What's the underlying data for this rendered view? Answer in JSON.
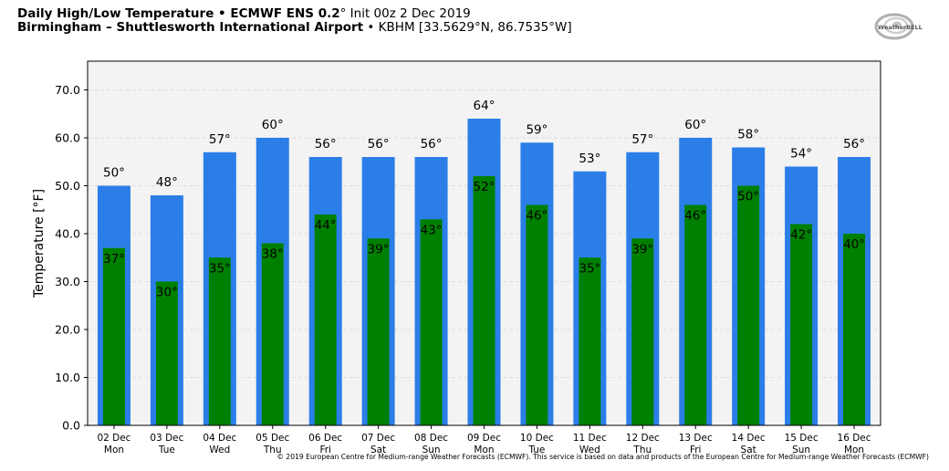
{
  "header": {
    "title_main": "Daily High/Low Temperature • ECMWF ENS 0.2",
    "title_degree": "°",
    "title_init": " Init 00z 2 Dec 2019",
    "location_main": "Birmingham – Shuttlesworth International Airport",
    "location_rest": " • KBHM [33.5629°N, 86.7535°W]"
  },
  "logo": {
    "text": "WeatherBELL",
    "icon": "swirl-logo-icon"
  },
  "copyright": "© 2019 European Centre for Medium-range Weather Forecasts (ECMWF). This service is based on data and products of the European Centre for Medium-range Weather Forecasts (ECMWF)",
  "colors": {
    "high": "#2b7ee8",
    "low": "#008000",
    "plot_bg": "#f3f3f3",
    "grid": "#d8d8d8"
  },
  "chart_data": {
    "type": "bar",
    "ylabel": "Temperature [°F]",
    "ylim": [
      0,
      76
    ],
    "yticks": [
      "0.0",
      "10.0",
      "20.0",
      "30.0",
      "40.0",
      "50.0",
      "60.0",
      "70.0"
    ],
    "categories": [
      [
        "02 Dec",
        "Mon"
      ],
      [
        "03 Dec",
        "Tue"
      ],
      [
        "04 Dec",
        "Wed"
      ],
      [
        "05 Dec",
        "Thu"
      ],
      [
        "06 Dec",
        "Fri"
      ],
      [
        "07 Dec",
        "Sat"
      ],
      [
        "08 Dec",
        "Sun"
      ],
      [
        "09 Dec",
        "Mon"
      ],
      [
        "10 Dec",
        "Tue"
      ],
      [
        "11 Dec",
        "Wed"
      ],
      [
        "12 Dec",
        "Thu"
      ],
      [
        "13 Dec",
        "Fri"
      ],
      [
        "14 Dec",
        "Sat"
      ],
      [
        "15 Dec",
        "Sun"
      ],
      [
        "16 Dec",
        "Mon"
      ]
    ],
    "series": [
      {
        "key": "high",
        "values": [
          50,
          48,
          57,
          60,
          56,
          56,
          56,
          64,
          59,
          53,
          57,
          60,
          58,
          54,
          56
        ],
        "labels": [
          "50°",
          "48°",
          "57°",
          "60°",
          "56°",
          "56°",
          "56°",
          "64°",
          "59°",
          "53°",
          "57°",
          "60°",
          "58°",
          "54°",
          "56°"
        ]
      },
      {
        "key": "low",
        "values": [
          37,
          30,
          35,
          38,
          44,
          39,
          43,
          52,
          46,
          35,
          39,
          46,
          50,
          42,
          40
        ],
        "labels": [
          "37°",
          "30°",
          "35°",
          "38°",
          "44°",
          "39°",
          "43°",
          "52°",
          "46°",
          "35°",
          "39°",
          "46°",
          "50°",
          "42°",
          "40°"
        ]
      }
    ],
    "grid": true
  }
}
